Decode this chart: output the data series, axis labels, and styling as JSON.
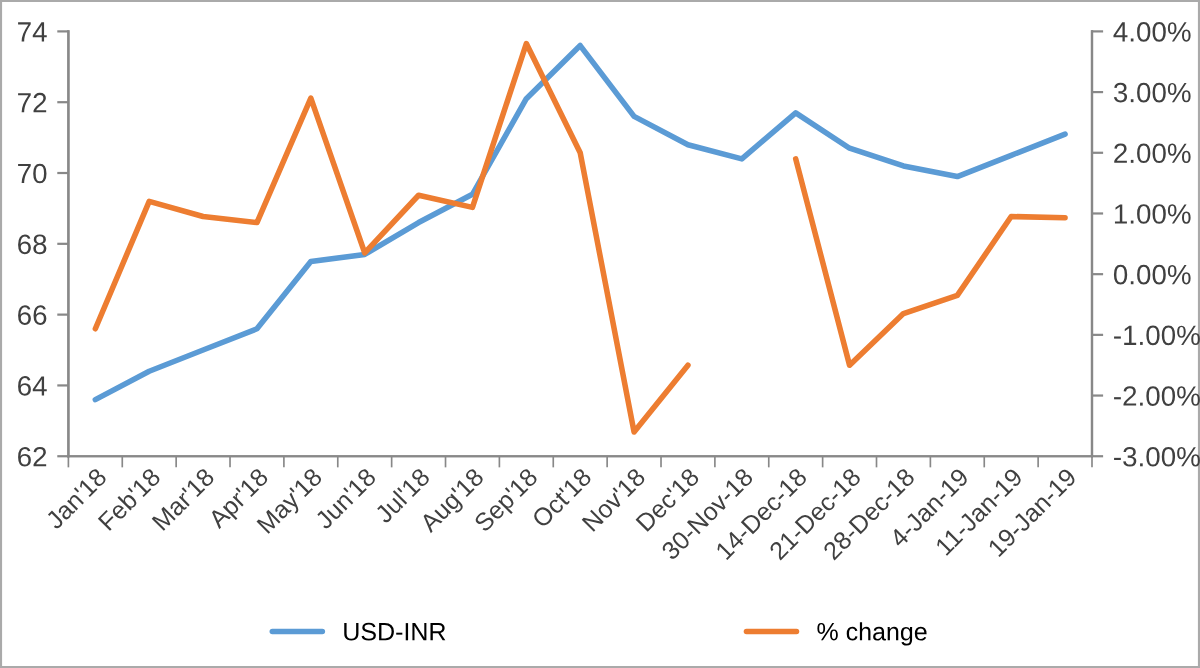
{
  "chart_data": {
    "type": "line",
    "categories": [
      "Jan'18",
      "Feb'18",
      "Mar'18",
      "Apr'18",
      "May'18",
      "Jun'18",
      "Jul'18",
      "Aug'18",
      "Sep'18",
      "Oct'18",
      "Nov'18",
      "Dec'18",
      "30-Nov-18",
      "14-Dec-18",
      "21-Dec-18",
      "28-Dec-18",
      "4-Jan-19",
      "11-Jan-19",
      "19-Jan-19"
    ],
    "series": [
      {
        "name": "USD-INR",
        "color": "#5b9bd5",
        "values": [
          63.6,
          64.4,
          65.0,
          65.6,
          67.5,
          67.7,
          68.6,
          69.4,
          72.1,
          73.6,
          71.6,
          70.8,
          70.4,
          71.7,
          70.7,
          70.2,
          69.9,
          70.5,
          71.1
        ]
      },
      {
        "name": "% change",
        "color": "#ed7d31",
        "axis": "y2",
        "values": [
          -0.9,
          1.2,
          0.95,
          0.85,
          2.9,
          0.35,
          1.3,
          1.1,
          3.8,
          2.0,
          -2.6,
          -1.5,
          null,
          1.9,
          -1.5,
          -0.65,
          -0.35,
          0.95,
          0.93
        ]
      }
    ],
    "ylim": [
      62,
      74
    ],
    "yticks": [
      62,
      64,
      66,
      68,
      70,
      72,
      74
    ],
    "y2lim": [
      -3,
      4
    ],
    "y2ticks": [
      {
        "value": -3,
        "label": "-3.00%"
      },
      {
        "value": -2,
        "label": "-2.00%"
      },
      {
        "value": -1,
        "label": "-1.00%"
      },
      {
        "value": 0,
        "label": "0.00%"
      },
      {
        "value": 1,
        "label": "1.00%"
      },
      {
        "value": 2,
        "label": "2.00%"
      },
      {
        "value": 3,
        "label": "3.00%"
      },
      {
        "value": 4,
        "label": "4.00%"
      }
    ],
    "legend": "bottom",
    "grid": false,
    "marker": "none",
    "line_style": "solid"
  }
}
